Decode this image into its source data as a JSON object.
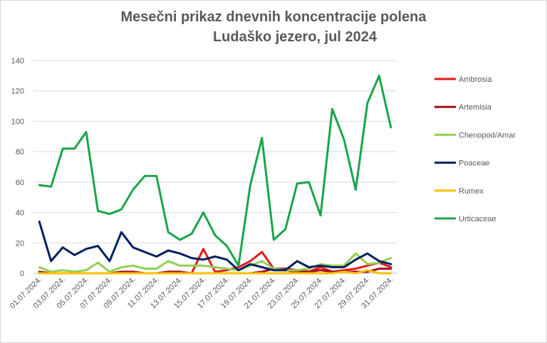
{
  "chart_data": {
    "type": "line",
    "title": "Mesečni prikaz dnevnih koncentracije polena",
    "subtitle": "Ludaško jezero, jul 2024",
    "xlabel": "",
    "ylabel": "",
    "ylim": [
      0,
      140
    ],
    "yticks": [
      0,
      20,
      40,
      60,
      80,
      100,
      120,
      140
    ],
    "grid": true,
    "legend": "right",
    "x": [
      "01.07.2024.",
      "02.07.2024.",
      "03.07.2024.",
      "04.07.2024.",
      "05.07.2024.",
      "06.07.2024.",
      "07.07.2024.",
      "08.07.2024.",
      "09.07.2024.",
      "10.07.2024.",
      "11.07.2024.",
      "12.07.2024.",
      "13.07.2024.",
      "14.07.2024.",
      "15.07.2024.",
      "16.07.2024.",
      "17.07.2024.",
      "18.07.2024.",
      "19.07.2024.",
      "20.07.2024.",
      "21.07.2024.",
      "22.07.2024.",
      "23.07.2024.",
      "24.07.2024.",
      "25.07.2024.",
      "26.07.2024.",
      "27.07.2024.",
      "28.07.2024.",
      "29.07.2024.",
      "30.07.2024.",
      "31.07.2024."
    ],
    "x_tick_labels": [
      "01.07.2024.",
      "03.07.2024.",
      "05.07.2024.",
      "07.07.2024.",
      "09.07.2024.",
      "11.07.2024.",
      "13.07.2024.",
      "15.07.2024.",
      "17.07.2024.",
      "19.07.2024.",
      "21.07.2024.",
      "23.07.2024.",
      "25.07.2024.",
      "27.07.2024.",
      "29.07.2024.",
      "31.07.2024."
    ],
    "series": [
      {
        "name": "Ambrosia",
        "color": "#e31a1c",
        "values": [
          0,
          0,
          0,
          0,
          0,
          0,
          0,
          0,
          0,
          0,
          0,
          0,
          0,
          0,
          16,
          1,
          2,
          4,
          8,
          14,
          3,
          2,
          1,
          1,
          4,
          1,
          2,
          3,
          5,
          7,
          4
        ]
      },
      {
        "name": "Artemisia",
        "color": "#a50f15",
        "values": [
          1,
          0,
          0,
          0,
          0,
          0,
          0,
          1,
          1,
          0,
          0,
          1,
          1,
          0,
          0,
          0,
          0,
          0,
          0,
          1,
          3,
          3,
          2,
          1,
          2,
          1,
          1,
          1,
          1,
          3,
          3
        ]
      },
      {
        "name": "Chenopod/Amar",
        "color": "#92d050",
        "values": [
          4,
          1,
          2,
          1,
          2,
          7,
          1,
          4,
          5,
          3,
          3,
          8,
          5,
          5,
          5,
          4,
          3,
          2,
          5,
          8,
          3,
          2,
          2,
          3,
          6,
          5,
          5,
          13,
          6,
          7,
          10
        ]
      },
      {
        "name": "Poaceae",
        "color": "#002060",
        "values": [
          34,
          8,
          17,
          12,
          16,
          18,
          8,
          27,
          17,
          14,
          11,
          15,
          13,
          10,
          9,
          11,
          9,
          2,
          6,
          4,
          2,
          2,
          8,
          4,
          5,
          4,
          4,
          9,
          13,
          8,
          6
        ]
      },
      {
        "name": "Rumex",
        "color": "#ffc000",
        "values": [
          0,
          0,
          0,
          0,
          0,
          0,
          0,
          0,
          0,
          0,
          0,
          0,
          0,
          0,
          0,
          0,
          0,
          0,
          0,
          0,
          0,
          0,
          0,
          0,
          0,
          0,
          1,
          0,
          2,
          0,
          0
        ]
      },
      {
        "name": "Urticaceae",
        "color": "#1aa54a",
        "values": [
          58,
          57,
          82,
          82,
          93,
          41,
          39,
          42,
          55,
          64,
          64,
          27,
          22,
          26,
          40,
          25,
          18,
          5,
          58,
          89,
          22,
          29,
          59,
          60,
          38,
          108,
          88,
          55,
          112,
          130,
          96
        ]
      }
    ]
  }
}
